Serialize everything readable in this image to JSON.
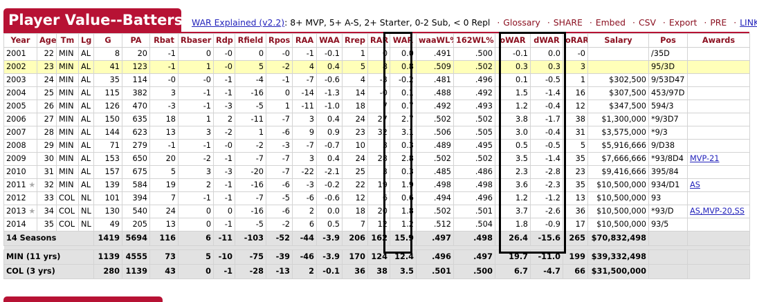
{
  "title": "Player Value--Batters",
  "links": {
    "war_explained": "WAR Explained (v2.2)",
    "scale": ": 8+ MVP, 5+ A-S, 2+ Starter, 0-2 Sub, < 0 Repl",
    "glossary": "Glossary",
    "share": "SHARE",
    "embed": "Embed",
    "csv": "CSV",
    "export": "Export",
    "pre": "PRE",
    "link": "LINK"
  },
  "columns": [
    "Year",
    "Age",
    "Tm",
    "Lg",
    "G",
    "PA",
    "Rbat",
    "Rbaser",
    "Rdp",
    "Rfield",
    "Rpos",
    "RAA",
    "WAA",
    "Rrep",
    "RAR",
    "WAR",
    "waaWL%",
    "162WL%",
    "oWAR",
    "dWAR",
    "oRAR",
    "Salary",
    "Pos",
    "Awards"
  ],
  "rows": [
    {
      "year": "2001",
      "star": "",
      "age": "22",
      "tm": "MIN",
      "lg": "AL",
      "g": "8",
      "pa": "20",
      "rbat": "-1",
      "rbaser": "0",
      "rdp": "-0",
      "rfield": "0",
      "rpos": "-0",
      "raa": "-1",
      "waa": "-0.1",
      "rrep": "1",
      "rar": "0",
      "war": "0.0",
      "waawl": ".491",
      "wl162": ".500",
      "owar": "-0.1",
      "dwar": "0.0",
      "orar": "-0",
      "salary": "",
      "pos": "/35D",
      "awards": ""
    },
    {
      "year": "2002",
      "star": "",
      "age": "23",
      "tm": "MIN",
      "lg": "AL",
      "g": "41",
      "pa": "123",
      "rbat": "-1",
      "rbaser": "1",
      "rdp": "-0",
      "rfield": "5",
      "rpos": "-2",
      "raa": "4",
      "waa": "0.4",
      "rrep": "5",
      "rar": "8",
      "war": "0.8",
      "waawl": ".509",
      "wl162": ".502",
      "owar": "0.3",
      "dwar": "0.3",
      "orar": "3",
      "salary": "",
      "pos": "95/3D",
      "awards": "",
      "highlight": true
    },
    {
      "year": "2003",
      "star": "",
      "age": "24",
      "tm": "MIN",
      "lg": "AL",
      "g": "35",
      "pa": "114",
      "rbat": "-0",
      "rbaser": "-0",
      "rdp": "-1",
      "rfield": "-4",
      "rpos": "-1",
      "raa": "-7",
      "waa": "-0.6",
      "rrep": "4",
      "rar": "-3",
      "war": "-0.2",
      "waawl": ".481",
      "wl162": ".496",
      "owar": "0.1",
      "dwar": "-0.5",
      "orar": "1",
      "salary": "$302,500",
      "pos": "9/53D47",
      "awards": ""
    },
    {
      "year": "2004",
      "star": "",
      "age": "25",
      "tm": "MIN",
      "lg": "AL",
      "g": "115",
      "pa": "382",
      "rbat": "3",
      "rbaser": "-1",
      "rdp": "-1",
      "rfield": "-16",
      "rpos": "0",
      "raa": "-14",
      "waa": "-1.3",
      "rrep": "14",
      "rar": "-0",
      "war": "0.1",
      "waawl": ".488",
      "wl162": ".492",
      "owar": "1.5",
      "dwar": "-1.4",
      "orar": "16",
      "salary": "$307,500",
      "pos": "453/97D",
      "awards": ""
    },
    {
      "year": "2005",
      "star": "",
      "age": "26",
      "tm": "MIN",
      "lg": "AL",
      "g": "126",
      "pa": "470",
      "rbat": "-3",
      "rbaser": "-1",
      "rdp": "-3",
      "rfield": "-5",
      "rpos": "1",
      "raa": "-11",
      "waa": "-1.0",
      "rrep": "18",
      "rar": "7",
      "war": "0.7",
      "waawl": ".492",
      "wl162": ".493",
      "owar": "1.2",
      "dwar": "-0.4",
      "orar": "12",
      "salary": "$347,500",
      "pos": "594/3",
      "awards": ""
    },
    {
      "year": "2006",
      "star": "",
      "age": "27",
      "tm": "MIN",
      "lg": "AL",
      "g": "150",
      "pa": "635",
      "rbat": "18",
      "rbaser": "1",
      "rdp": "2",
      "rfield": "-11",
      "rpos": "-7",
      "raa": "3",
      "waa": "0.4",
      "rrep": "24",
      "rar": "27",
      "war": "2.7",
      "waawl": ".502",
      "wl162": ".502",
      "owar": "3.8",
      "dwar": "-1.7",
      "orar": "38",
      "salary": "$1,300,000",
      "pos": "*9/3D7",
      "awards": ""
    },
    {
      "year": "2007",
      "star": "",
      "age": "28",
      "tm": "MIN",
      "lg": "AL",
      "g": "144",
      "pa": "623",
      "rbat": "13",
      "rbaser": "3",
      "rdp": "-2",
      "rfield": "1",
      "rpos": "-6",
      "raa": "9",
      "waa": "0.9",
      "rrep": "23",
      "rar": "32",
      "war": "3.1",
      "waawl": ".506",
      "wl162": ".505",
      "owar": "3.0",
      "dwar": "-0.4",
      "orar": "31",
      "salary": "$3,575,000",
      "pos": "*9/3",
      "awards": ""
    },
    {
      "year": "2008",
      "star": "",
      "age": "29",
      "tm": "MIN",
      "lg": "AL",
      "g": "71",
      "pa": "279",
      "rbat": "-1",
      "rbaser": "-1",
      "rdp": "-0",
      "rfield": "-2",
      "rpos": "-3",
      "raa": "-7",
      "waa": "-0.7",
      "rrep": "10",
      "rar": "3",
      "war": "0.3",
      "waawl": ".489",
      "wl162": ".495",
      "owar": "0.5",
      "dwar": "-0.5",
      "orar": "5",
      "salary": "$5,916,666",
      "pos": "9/D38",
      "awards": ""
    },
    {
      "year": "2009",
      "star": "",
      "age": "30",
      "tm": "MIN",
      "lg": "AL",
      "g": "153",
      "pa": "650",
      "rbat": "20",
      "rbaser": "-2",
      "rdp": "-1",
      "rfield": "-7",
      "rpos": "-7",
      "raa": "3",
      "waa": "0.4",
      "rrep": "24",
      "rar": "28",
      "war": "2.8",
      "waawl": ".502",
      "wl162": ".502",
      "owar": "3.5",
      "dwar": "-1.4",
      "orar": "35",
      "salary": "$7,666,666",
      "pos": "*93/8D4",
      "awards": "MVP-21"
    },
    {
      "year": "2010",
      "star": "",
      "age": "31",
      "tm": "MIN",
      "lg": "AL",
      "g": "157",
      "pa": "675",
      "rbat": "5",
      "rbaser": "3",
      "rdp": "-3",
      "rfield": "-20",
      "rpos": "-7",
      "raa": "-22",
      "waa": "-2.1",
      "rrep": "25",
      "rar": "3",
      "war": "0.3",
      "waawl": ".485",
      "wl162": ".486",
      "owar": "2.3",
      "dwar": "-2.8",
      "orar": "23",
      "salary": "$9,416,666",
      "pos": "395/84",
      "awards": ""
    },
    {
      "year": "2011",
      "star": "★",
      "age": "32",
      "tm": "MIN",
      "lg": "AL",
      "g": "139",
      "pa": "584",
      "rbat": "19",
      "rbaser": "2",
      "rdp": "-1",
      "rfield": "-16",
      "rpos": "-6",
      "raa": "-3",
      "waa": "-0.2",
      "rrep": "22",
      "rar": "19",
      "war": "1.9",
      "waawl": ".498",
      "wl162": ".498",
      "owar": "3.6",
      "dwar": "-2.3",
      "orar": "35",
      "salary": "$10,500,000",
      "pos": "934/D1",
      "awards": "AS"
    },
    {
      "year": "2012",
      "star": "",
      "age": "33",
      "tm": "COL",
      "lg": "NL",
      "g": "101",
      "pa": "394",
      "rbat": "7",
      "rbaser": "-1",
      "rdp": "-1",
      "rfield": "-7",
      "rpos": "-5",
      "raa": "-6",
      "waa": "-0.6",
      "rrep": "12",
      "rar": "6",
      "war": "0.6",
      "waawl": ".494",
      "wl162": ".496",
      "owar": "1.2",
      "dwar": "-1.2",
      "orar": "13",
      "salary": "$10,500,000",
      "pos": "93",
      "awards": ""
    },
    {
      "year": "2013",
      "star": "★",
      "age": "34",
      "tm": "COL",
      "lg": "NL",
      "g": "130",
      "pa": "540",
      "rbat": "24",
      "rbaser": "0",
      "rdp": "0",
      "rfield": "-16",
      "rpos": "-6",
      "raa": "2",
      "waa": "0.0",
      "rrep": "18",
      "rar": "20",
      "war": "1.8",
      "waawl": ".502",
      "wl162": ".501",
      "owar": "3.7",
      "dwar": "-2.6",
      "orar": "36",
      "salary": "$10,500,000",
      "pos": "*93/D",
      "awards": "AS,MVP-20,SS"
    },
    {
      "year": "2014",
      "star": "",
      "age": "35",
      "tm": "COL",
      "lg": "NL",
      "g": "49",
      "pa": "205",
      "rbat": "13",
      "rbaser": "0",
      "rdp": "-1",
      "rfield": "-5",
      "rpos": "-2",
      "raa": "6",
      "waa": "0.5",
      "rrep": "7",
      "rar": "12",
      "war": "1.2",
      "waawl": ".512",
      "wl162": ".504",
      "owar": "1.8",
      "dwar": "-0.9",
      "orar": "17",
      "salary": "$10,500,000",
      "pos": "93/5",
      "awards": ""
    }
  ],
  "totals": [
    {
      "label": "14 Seasons",
      "g": "1419",
      "pa": "5694",
      "rbat": "116",
      "rbaser": "6",
      "rdp": "-11",
      "rfield": "-103",
      "rpos": "-52",
      "raa": "-44",
      "waa": "-3.9",
      "rrep": "206",
      "rar": "162",
      "war": "15.9",
      "waawl": ".497",
      "wl162": ".498",
      "owar": "26.4",
      "dwar": "-15.6",
      "orar": "265",
      "salary": "$70,832,498"
    },
    {
      "label": "MIN (11 yrs)",
      "g": "1139",
      "pa": "4555",
      "rbat": "73",
      "rbaser": "5",
      "rdp": "-10",
      "rfield": "-75",
      "rpos": "-39",
      "raa": "-46",
      "waa": "-3.9",
      "rrep": "170",
      "rar": "124",
      "war": "12.4",
      "waawl": ".496",
      "wl162": ".497",
      "owar": "19.7",
      "dwar": "-11.0",
      "orar": "199",
      "salary": "$39,332,498"
    },
    {
      "label": "COL (3 yrs)",
      "g": "280",
      "pa": "1139",
      "rbat": "43",
      "rbaser": "0",
      "rdp": "-1",
      "rfield": "-28",
      "rpos": "-13",
      "raa": "2",
      "waa": "-0.1",
      "rrep": "36",
      "rar": "38",
      "war": "3.5",
      "waawl": ".501",
      "wl162": ".500",
      "owar": "6.7",
      "dwar": "-4.7",
      "orar": "66",
      "salary": "$31,500,000"
    }
  ],
  "colors": {
    "accent": "#b71234",
    "highlight": "#ffffb9",
    "totals_bg": "#e2e2e2",
    "link": "#2222bb"
  }
}
